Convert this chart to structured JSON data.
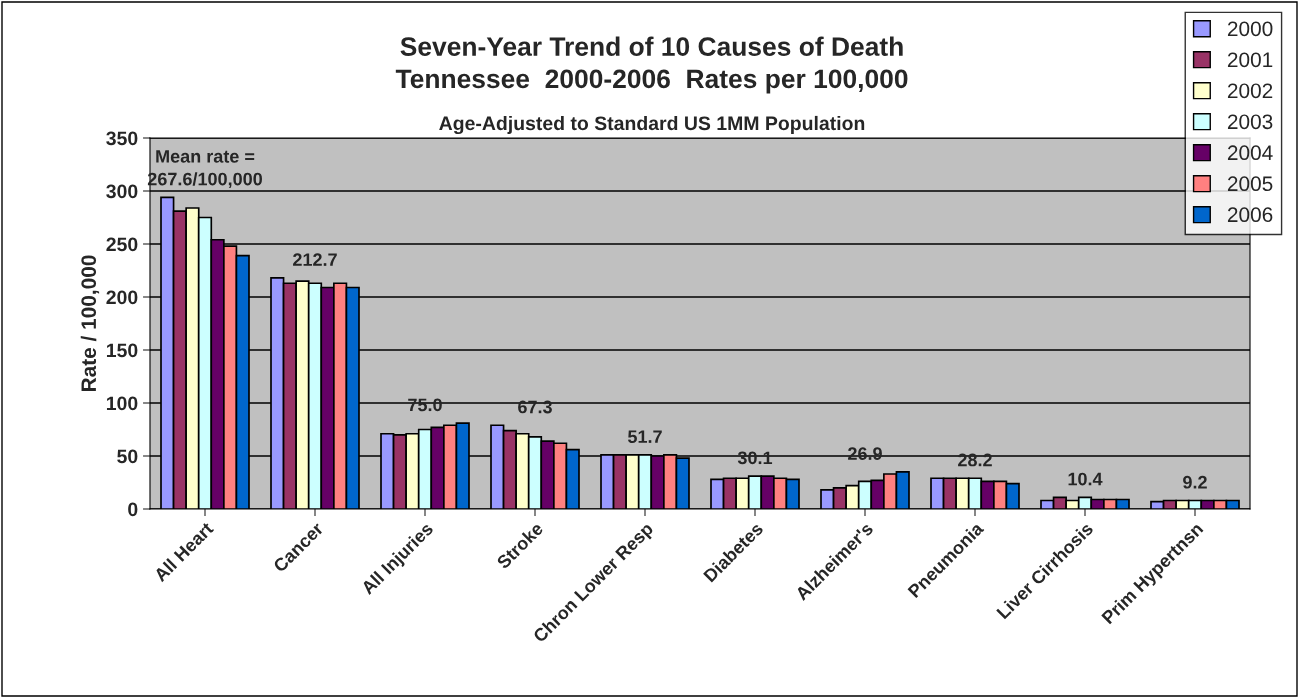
{
  "chart_data": {
    "type": "bar",
    "title": "Seven-Year Trend of 10 Causes of Death\nTennessee  2000-2006  Rates per 100,000",
    "subtitle": "Age-Adjusted to Standard US 1MM Population",
    "ylabel": "Rate / 100,000",
    "categories": [
      "All Heart",
      "Cancer",
      "All Injuries",
      "Stroke",
      "Chron Lower Resp",
      "Diabetes",
      "Alzheimer's",
      "Pneumonia",
      "Liver Cirrhosis",
      "Prim Hypertnsn"
    ],
    "series": [
      {
        "name": "2000",
        "color": "#9999ff",
        "values": [
          294,
          218,
          71,
          79,
          51,
          28,
          18,
          29,
          8,
          7
        ]
      },
      {
        "name": "2001",
        "color": "#993366",
        "values": [
          281,
          213,
          70,
          74,
          51,
          29,
          20,
          29,
          11,
          8
        ]
      },
      {
        "name": "2002",
        "color": "#ffffcc",
        "values": [
          284,
          215,
          71,
          71,
          51,
          29,
          22,
          29,
          8,
          8
        ]
      },
      {
        "name": "2003",
        "color": "#ccffff",
        "values": [
          275,
          213,
          75,
          68,
          51,
          31,
          26,
          29,
          11,
          8
        ]
      },
      {
        "name": "2004",
        "color": "#660066",
        "values": [
          254,
          209,
          77,
          64,
          50,
          31,
          27,
          26,
          9,
          8
        ]
      },
      {
        "name": "2005",
        "color": "#ff8080",
        "values": [
          248,
          213,
          79,
          62,
          51,
          29,
          33,
          26,
          9,
          8
        ]
      },
      {
        "name": "2006",
        "color": "#0066cc",
        "values": [
          239,
          209,
          81,
          56,
          48,
          28,
          35,
          24,
          9,
          8
        ]
      }
    ],
    "annotations": [
      "Mean rate =\n267.6/100,000",
      "212.7",
      "75.0",
      "67.3",
      "51.7",
      "30.1",
      "26.9",
      "28.2",
      "10.4",
      "9.2"
    ],
    "ylim": [
      0,
      350
    ],
    "yticks": [
      0,
      50,
      100,
      150,
      200,
      250,
      300,
      350
    ],
    "grid": "y",
    "legend": "top right"
  }
}
